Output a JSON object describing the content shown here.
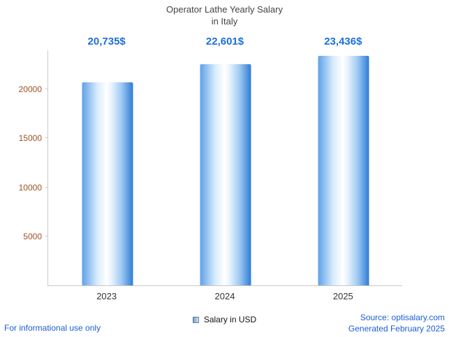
{
  "title": {
    "line1": "Operator Lathe Yearly Salary",
    "line2": "in Italy"
  },
  "legend": {
    "label": "Salary in USD"
  },
  "footer": {
    "left": "For informational use only",
    "source": "Source: optisalary.com",
    "generated": "Generated February 2025"
  },
  "colors": {
    "title": "#434343",
    "value_label": "#1e6fd9",
    "axis_label": "#9c5221",
    "x_label": "#333333",
    "axis_line": "#c9c9c9",
    "bar_mid": "#5ea1e8",
    "bar_edge": "#2e7cd6",
    "footer_text": "#1c5dd6"
  },
  "chart_data": {
    "type": "bar",
    "title": "Operator Lathe Yearly Salary in Italy",
    "categories": [
      "2023",
      "2024",
      "2025"
    ],
    "values": [
      20735,
      22601,
      23436
    ],
    "value_labels": [
      "20,735$",
      "22,601$",
      "23,436$"
    ],
    "series": [
      {
        "name": "Salary in USD",
        "values": [
          20735,
          22601,
          23436
        ]
      }
    ],
    "xlabel": "",
    "ylabel": "",
    "y_ticks": [
      5000,
      10000,
      15000,
      20000
    ],
    "ylim": [
      0,
      24000
    ],
    "grid": false,
    "legend_position": "bottom"
  }
}
